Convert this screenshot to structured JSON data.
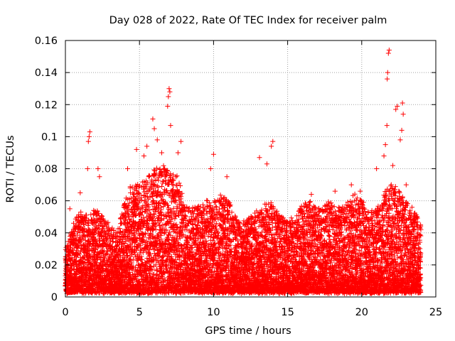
{
  "chart_data": {
    "type": "scatter",
    "title": "Day 028 of 2022, Rate Of TEC Index for receiver palm",
    "xlabel": "GPS time / hours",
    "ylabel": "ROTI / TECUs",
    "xlim": [
      0,
      25
    ],
    "ylim": [
      0,
      0.16
    ],
    "x_ticks": [
      0,
      5,
      10,
      15,
      20,
      25
    ],
    "x_tick_labels": [
      "0",
      "5",
      "10",
      "15",
      "20",
      "25"
    ],
    "y_ticks": [
      0,
      0.02,
      0.04,
      0.06,
      0.08,
      0.1,
      0.12,
      0.14,
      0.16
    ],
    "y_tick_labels": [
      "0",
      "0.02",
      "0.04",
      "0.06",
      "0.08",
      "0.1",
      "0.12",
      "0.14",
      "0.16"
    ],
    "grid": true,
    "marker": "+",
    "series_color": "#ff0000",
    "envelope": {
      "description": "approximate upper envelope of the dense point cloud (hour, ROTI)",
      "x": [
        0,
        0.5,
        1,
        1.5,
        2,
        2.5,
        3,
        3.5,
        4,
        4.5,
        5,
        5.5,
        6,
        6.5,
        7,
        7.5,
        8,
        8.5,
        9,
        9.5,
        10,
        10.5,
        11,
        11.5,
        12,
        12.5,
        13,
        13.5,
        14,
        14.5,
        15,
        15.5,
        16,
        16.5,
        17,
        17.5,
        18,
        18.5,
        19,
        19.5,
        20,
        20.5,
        21,
        21.5,
        22,
        22.5,
        23,
        23.5,
        24
      ],
      "y": [
        0.03,
        0.045,
        0.055,
        0.05,
        0.055,
        0.05,
        0.045,
        0.04,
        0.06,
        0.072,
        0.07,
        0.075,
        0.08,
        0.082,
        0.08,
        0.078,
        0.06,
        0.055,
        0.058,
        0.06,
        0.06,
        0.065,
        0.06,
        0.05,
        0.048,
        0.05,
        0.055,
        0.06,
        0.06,
        0.052,
        0.048,
        0.05,
        0.058,
        0.06,
        0.055,
        0.058,
        0.06,
        0.055,
        0.06,
        0.065,
        0.06,
        0.052,
        0.055,
        0.065,
        0.07,
        0.068,
        0.06,
        0.055,
        0.045
      ]
    },
    "peaks": [
      {
        "x": 0.3,
        "y": 0.055
      },
      {
        "x": 1.0,
        "y": 0.065
      },
      {
        "x": 1.5,
        "y": 0.08
      },
      {
        "x": 1.55,
        "y": 0.097
      },
      {
        "x": 1.6,
        "y": 0.1
      },
      {
        "x": 1.65,
        "y": 0.103
      },
      {
        "x": 2.2,
        "y": 0.08
      },
      {
        "x": 2.3,
        "y": 0.075
      },
      {
        "x": 4.2,
        "y": 0.08
      },
      {
        "x": 4.8,
        "y": 0.092
      },
      {
        "x": 5.3,
        "y": 0.088
      },
      {
        "x": 5.5,
        "y": 0.094
      },
      {
        "x": 5.9,
        "y": 0.111
      },
      {
        "x": 6.0,
        "y": 0.105
      },
      {
        "x": 6.2,
        "y": 0.098
      },
      {
        "x": 6.5,
        "y": 0.09
      },
      {
        "x": 6.9,
        "y": 0.119
      },
      {
        "x": 6.95,
        "y": 0.125
      },
      {
        "x": 7.0,
        "y": 0.13
      },
      {
        "x": 7.05,
        "y": 0.128
      },
      {
        "x": 7.1,
        "y": 0.107
      },
      {
        "x": 7.6,
        "y": 0.09
      },
      {
        "x": 7.8,
        "y": 0.097
      },
      {
        "x": 9.8,
        "y": 0.08
      },
      {
        "x": 10.0,
        "y": 0.089
      },
      {
        "x": 10.9,
        "y": 0.075
      },
      {
        "x": 13.1,
        "y": 0.087
      },
      {
        "x": 13.6,
        "y": 0.083
      },
      {
        "x": 13.9,
        "y": 0.094
      },
      {
        "x": 14.0,
        "y": 0.097
      },
      {
        "x": 16.6,
        "y": 0.064
      },
      {
        "x": 18.2,
        "y": 0.066
      },
      {
        "x": 19.3,
        "y": 0.07
      },
      {
        "x": 19.9,
        "y": 0.066
      },
      {
        "x": 21.0,
        "y": 0.08
      },
      {
        "x": 21.5,
        "y": 0.088
      },
      {
        "x": 21.6,
        "y": 0.095
      },
      {
        "x": 21.7,
        "y": 0.107
      },
      {
        "x": 21.72,
        "y": 0.136
      },
      {
        "x": 21.75,
        "y": 0.14
      },
      {
        "x": 21.8,
        "y": 0.152
      },
      {
        "x": 21.85,
        "y": 0.154
      },
      {
        "x": 22.1,
        "y": 0.082
      },
      {
        "x": 22.3,
        "y": 0.117
      },
      {
        "x": 22.4,
        "y": 0.119
      },
      {
        "x": 22.6,
        "y": 0.098
      },
      {
        "x": 22.7,
        "y": 0.104
      },
      {
        "x": 22.75,
        "y": 0.121
      },
      {
        "x": 22.8,
        "y": 0.114
      },
      {
        "x": 23.0,
        "y": 0.07
      }
    ]
  }
}
